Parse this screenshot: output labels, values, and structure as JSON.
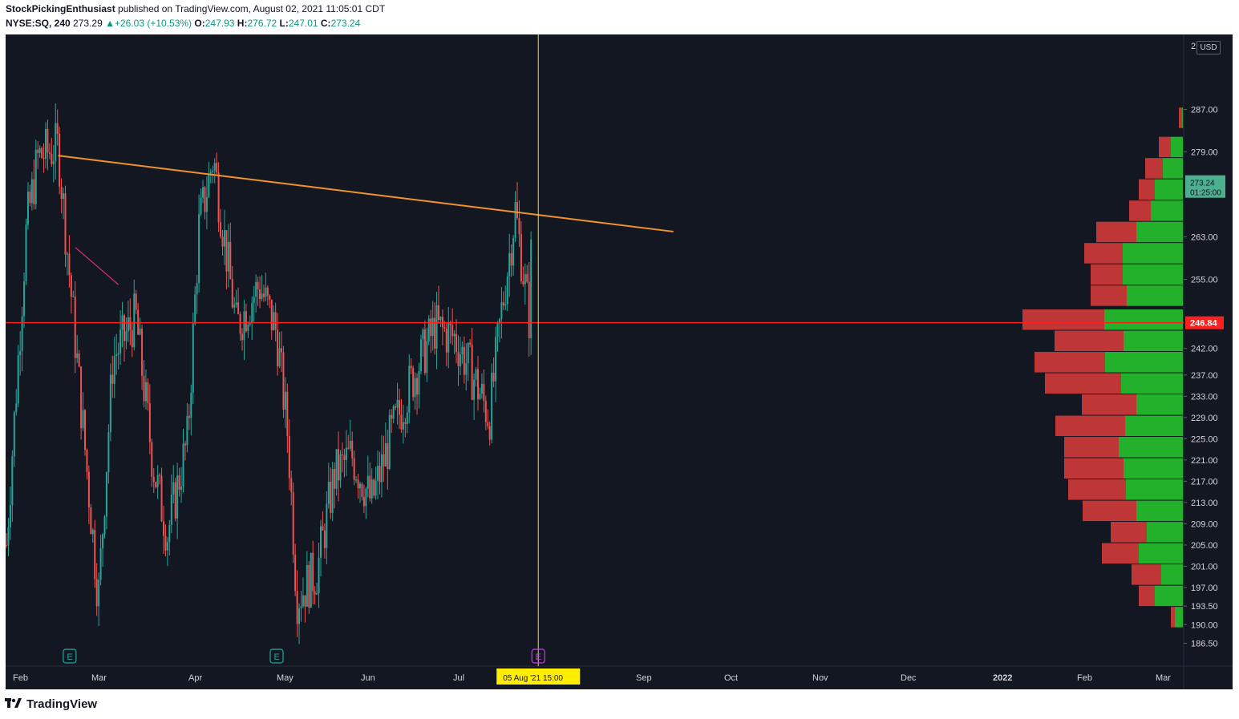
{
  "header": {
    "author": "StockPickingEnthusiast",
    "published_text": " published on TradingView.com, August 02, 2021 11:05:01 CDT",
    "symbol": "NYSE:SQ, 240",
    "last": "273.29",
    "change": "+26.03 (+10.53%)",
    "open_label": "O:",
    "open": "247.93",
    "high_label": "H:",
    "high": "276.72",
    "low_label": "L:",
    "low": "247.01",
    "close_label": "C:",
    "close": "273.24",
    "up_arrow": "▲"
  },
  "footer": {
    "brand": "TradingView"
  },
  "colors": {
    "background": "#131722",
    "up": "#26a69a",
    "down": "#ef5350",
    "trendline": "#f0932b",
    "pink_line": "#e0307a",
    "support_line": "#ff1f1f",
    "cursor_line": "#e8e23a",
    "vp_up": "#23b12b",
    "vp_down": "#bf3636",
    "earnings_past": "#26a69a",
    "earnings_next": "#c23ee8",
    "highlight_badge": "#ffee00",
    "price_badge": "#4caf8f",
    "support_badge": "#ff1f1f"
  },
  "chart_data": {
    "type": "candlestick",
    "symbol": "NYSE:SQ",
    "interval": "240",
    "currency": "USD",
    "price_axis": {
      "ticks": [
        "287.00",
        "279.00",
        "263.00",
        "255.00",
        "242.00",
        "237.00",
        "233.00",
        "229.00",
        "225.00",
        "221.00",
        "217.00",
        "213.00",
        "209.00",
        "205.00",
        "201.00",
        "197.00",
        "193.50",
        "190.00",
        "186.50"
      ],
      "ylim": [
        182.5,
        299
      ]
    },
    "time_axis": {
      "labels": [
        "Feb",
        "Mar",
        "Apr",
        "May",
        "Jun",
        "Jul",
        "Sep",
        "Oct",
        "Nov",
        "Dec",
        "2022",
        "Feb",
        "Mar"
      ],
      "highlighted_label": "05 Aug '21   15:00",
      "bold_labels": [
        "2022"
      ]
    },
    "price_badges": [
      {
        "value": "273.24",
        "sub": "01:25:00",
        "role": "last"
      },
      {
        "value": "246.84",
        "role": "support"
      }
    ],
    "support_level": 246.84,
    "trendline": {
      "start": [
        "2021-02-19",
        278.3
      ],
      "end": [
        "2021-09-21",
        264.0
      ]
    },
    "secondary_trendline": {
      "start": [
        "2021-02-25",
        261.0
      ],
      "end": [
        "2021-03-12",
        254.0
      ]
    },
    "cursor_date": "2021-08-05",
    "earnings": [
      {
        "date": "2021-02-23",
        "label": "E",
        "state": "past"
      },
      {
        "date": "2021-05-06",
        "label": "E",
        "state": "past"
      },
      {
        "date": "2021-08-05",
        "label": "E",
        "state": "upcoming"
      }
    ],
    "anchor_points": [
      {
        "date": "2021-02-01",
        "price": 205
      },
      {
        "date": "2021-02-08",
        "price": 265
      },
      {
        "date": "2021-02-12",
        "price": 278
      },
      {
        "date": "2021-02-19",
        "price": 280
      },
      {
        "date": "2021-02-26",
        "price": 237
      },
      {
        "date": "2021-03-05",
        "price": 195
      },
      {
        "date": "2021-03-10",
        "price": 240
      },
      {
        "date": "2021-03-18",
        "price": 248
      },
      {
        "date": "2021-03-24",
        "price": 220
      },
      {
        "date": "2021-03-29",
        "price": 207
      },
      {
        "date": "2021-04-05",
        "price": 225
      },
      {
        "date": "2021-04-09",
        "price": 265
      },
      {
        "date": "2021-04-14",
        "price": 278
      },
      {
        "date": "2021-04-22",
        "price": 246
      },
      {
        "date": "2021-04-30",
        "price": 254
      },
      {
        "date": "2021-05-06",
        "price": 245
      },
      {
        "date": "2021-05-10",
        "price": 225
      },
      {
        "date": "2021-05-13",
        "price": 195
      },
      {
        "date": "2021-05-20",
        "price": 200
      },
      {
        "date": "2021-05-26",
        "price": 218
      },
      {
        "date": "2021-06-01",
        "price": 222
      },
      {
        "date": "2021-06-08",
        "price": 213
      },
      {
        "date": "2021-06-15",
        "price": 226
      },
      {
        "date": "2021-06-22",
        "price": 236
      },
      {
        "date": "2021-06-30",
        "price": 246
      },
      {
        "date": "2021-07-07",
        "price": 244
      },
      {
        "date": "2021-07-14",
        "price": 236
      },
      {
        "date": "2021-07-19",
        "price": 229
      },
      {
        "date": "2021-07-23",
        "price": 248
      },
      {
        "date": "2021-07-28",
        "price": 268
      },
      {
        "date": "2021-08-02",
        "price": 247
      },
      {
        "date": "2021-08-03",
        "price": 273.2
      }
    ],
    "volume_profile": [
      {
        "price": 285.5,
        "up": 1,
        "down": 4
      },
      {
        "price": 280.0,
        "up": 15,
        "down": 15
      },
      {
        "price": 276.0,
        "up": 25,
        "down": 22
      },
      {
        "price": 272.0,
        "up": 35,
        "down": 20
      },
      {
        "price": 268.0,
        "up": 40,
        "down": 27
      },
      {
        "price": 264.0,
        "up": 58,
        "down": 50
      },
      {
        "price": 260.0,
        "up": 75,
        "down": 48
      },
      {
        "price": 256.0,
        "up": 75,
        "down": 40
      },
      {
        "price": 252.0,
        "up": 70,
        "down": 45
      },
      {
        "price": 247.5,
        "up": 98,
        "down": 102
      },
      {
        "price": 243.5,
        "up": 74,
        "down": 86
      },
      {
        "price": 239.5,
        "up": 97,
        "down": 88
      },
      {
        "price": 235.5,
        "up": 77,
        "down": 95
      },
      {
        "price": 231.5,
        "up": 58,
        "down": 68
      },
      {
        "price": 227.5,
        "up": 72,
        "down": 87
      },
      {
        "price": 223.5,
        "up": 80,
        "down": 68
      },
      {
        "price": 219.5,
        "up": 74,
        "down": 74
      },
      {
        "price": 215.5,
        "up": 71,
        "down": 72
      },
      {
        "price": 211.5,
        "up": 58,
        "down": 67
      },
      {
        "price": 207.5,
        "up": 45,
        "down": 45
      },
      {
        "price": 203.5,
        "up": 55,
        "down": 46
      },
      {
        "price": 199.5,
        "up": 27,
        "down": 37
      },
      {
        "price": 195.5,
        "up": 35,
        "down": 20
      },
      {
        "price": 191.5,
        "up": 10,
        "down": 5
      }
    ]
  }
}
